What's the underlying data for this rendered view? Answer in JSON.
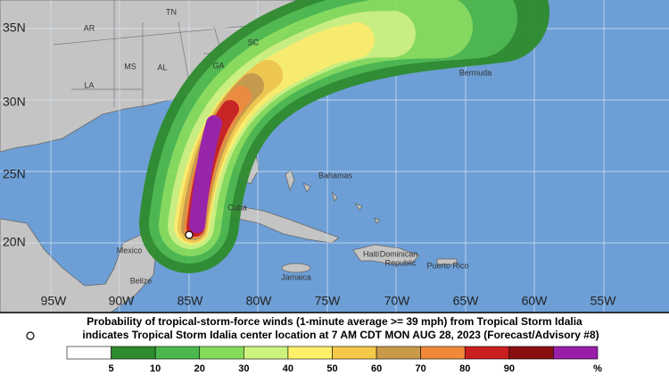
{
  "map": {
    "lat_labels": [
      "35N",
      "30N",
      "25N",
      "20N"
    ],
    "lon_labels": [
      "95W",
      "90W",
      "85W",
      "80W",
      "75W",
      "70W",
      "65W",
      "60W",
      "55W"
    ],
    "places": [
      "AR",
      "TN",
      "MS",
      "AL",
      "GA",
      "SC",
      "LA",
      "Bermuda",
      "Bahamas",
      "Cuba",
      "Mexico",
      "Belize",
      "Jamaica",
      "Haiti",
      "Dominican",
      "Republic",
      "Puerto Rico"
    ]
  },
  "caption": {
    "line1": "Probability of tropical-storm-force winds (1-minute average >= 39 mph) from Tropical Storm Idalia",
    "line2": "indicates Tropical Storm Idalia center location at 7 AM CDT MON AUG 28, 2023 (Forecast/Advisory #8)"
  },
  "scale": {
    "labels": [
      5,
      10,
      20,
      30,
      40,
      50,
      60,
      70,
      80,
      90
    ],
    "unit": "%"
  }
}
